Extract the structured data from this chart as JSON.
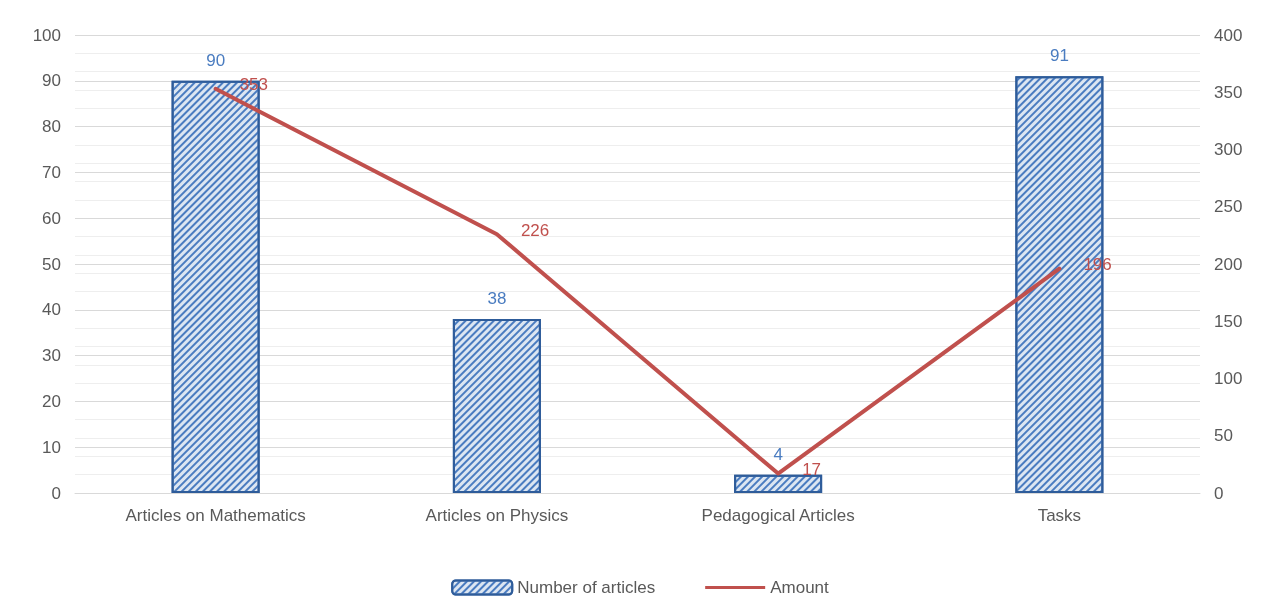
{
  "chart_data": {
    "type": "bar",
    "categories": [
      "Articles on Mathematics",
      "Articles on Physics",
      "Pedagogical Articles",
      "Tasks"
    ],
    "series": [
      {
        "name": "Number of articles",
        "color": "#2e5c9a",
        "values": [
          90,
          38,
          4,
          91
        ]
      },
      {
        "name": "Amount",
        "type": "line",
        "axis": "y2",
        "color": "#c0504d",
        "values": [
          353,
          226,
          17,
          196
        ]
      }
    ],
    "ylim": [
      0,
      100
    ],
    "yticks": [
      0,
      10,
      20,
      30,
      40,
      50,
      60,
      70,
      80,
      90,
      100
    ],
    "y2lim": [
      0,
      400
    ],
    "y2ticks": [
      0,
      50,
      100,
      150,
      200,
      250,
      300,
      350,
      400
    ],
    "data_labels": true,
    "grid": "y",
    "legend": "bottom",
    "marker": "none",
    "line_style": "solid"
  }
}
